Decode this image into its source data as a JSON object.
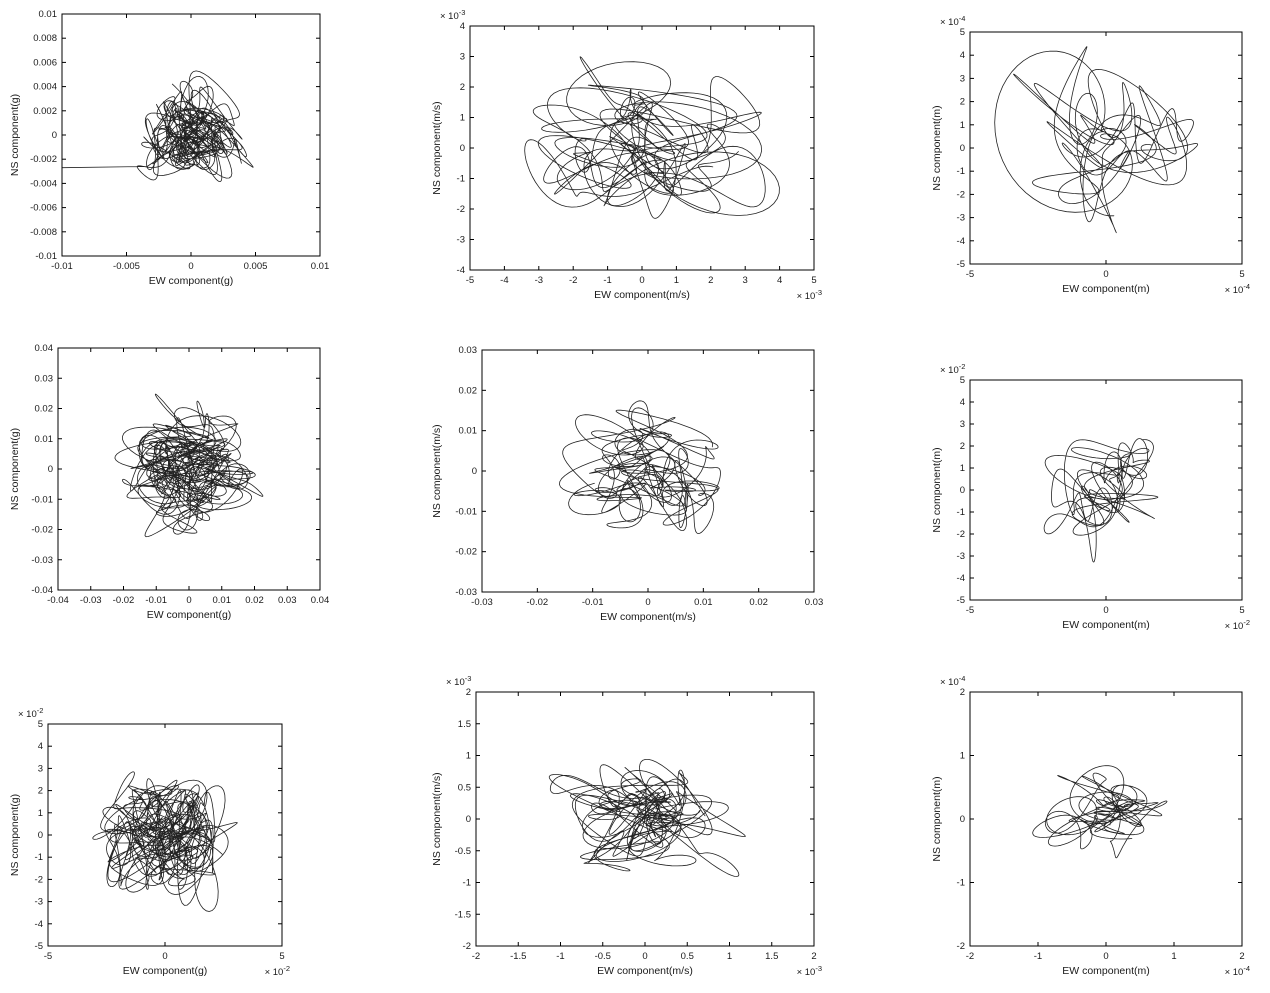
{
  "figure": {
    "background": "#ffffff",
    "axis_color": "#000000",
    "text_color": "#1a1a1a",
    "trace_color": "#222222",
    "description": "3x3 grid of seismic particle-motion hodograms (NS vs EW component) for acceleration (g), velocity (m/s) and displacement (m)"
  },
  "chart_data": [
    {
      "id": "accel-record1",
      "type": "line",
      "title": "",
      "xlabel": "EW component(g)",
      "ylabel": "NS component(g)",
      "xlim": [
        -0.01,
        0.01
      ],
      "ylim": [
        -0.01,
        0.01
      ],
      "xticks": [
        -0.01,
        -0.005,
        0,
        0.005,
        0.01
      ],
      "xtick_labels": [
        "-0.01",
        "-0.005",
        "0",
        "0.005",
        "0.01"
      ],
      "yticks": [
        0.01,
        0.008,
        0.006,
        0.004,
        0.002,
        0,
        -0.002,
        -0.004,
        -0.006,
        -0.008,
        -0.01
      ],
      "ytick_labels": [
        "0.01",
        "0.008",
        "0.006",
        "0.004",
        "0.002",
        "0",
        "-0.002",
        "-0.004",
        "-0.006",
        "-0.008",
        "-0.01"
      ],
      "x_exponent": null,
      "y_exponent": null,
      "grid": false,
      "legend": null,
      "trace": {
        "seed": 11,
        "components": 16,
        "cycles": 9,
        "points": 2600,
        "sigma_frac": [
          0.17,
          0.16
        ],
        "center_frac": [
          0.01,
          0
        ],
        "line_width": 0.8,
        "leadin_frac": [
          [
            -1,
            -0.27
          ],
          [
            -0.34,
            -0.26
          ]
        ]
      }
    },
    {
      "id": "vel-record1",
      "type": "line",
      "title": "",
      "xlabel": "EW component(m/s)",
      "ylabel": "NS component(m/s)",
      "xlim": [
        -5,
        5
      ],
      "ylim": [
        -4,
        4
      ],
      "xticks": [
        -5,
        -4,
        -3,
        -2,
        -1,
        0,
        1,
        2,
        3,
        4,
        5
      ],
      "xtick_labels": [
        "-5",
        "-4",
        "-3",
        "-2",
        "-1",
        "0",
        "1",
        "2",
        "3",
        "4",
        "5"
      ],
      "yticks": [
        4,
        3,
        2,
        1,
        0,
        -1,
        -2,
        -3,
        -4
      ],
      "ytick_labels": [
        "4",
        "3",
        "2",
        "1",
        "0",
        "-1",
        "-2",
        "-3",
        "-4"
      ],
      "x_exponent": "-3",
      "y_exponent": "-3",
      "grid": false,
      "legend": null,
      "trace": {
        "seed": 22,
        "components": 12,
        "cycles": 6,
        "points": 1800,
        "sigma_frac": [
          0.3,
          0.27
        ],
        "center_frac": [
          0,
          0
        ],
        "line_width": 0.8,
        "leadin_frac": null
      }
    },
    {
      "id": "disp-record1",
      "type": "line",
      "title": "",
      "xlabel": "EW component(m)",
      "ylabel": "NS component(m)",
      "xlim": [
        -5,
        5
      ],
      "ylim": [
        -5,
        5
      ],
      "xticks": [
        -5,
        0,
        5
      ],
      "xtick_labels": [
        "-5",
        "0",
        "5"
      ],
      "yticks": [
        5,
        4,
        3,
        2,
        1,
        0,
        -1,
        -2,
        -3,
        -4,
        -5
      ],
      "ytick_labels": [
        "5",
        "4",
        "3",
        "2",
        "1",
        "0",
        "-1",
        "-2",
        "-3",
        "-4",
        "-5"
      ],
      "x_exponent": "-4",
      "y_exponent": "-4",
      "grid": false,
      "legend": null,
      "trace": {
        "seed": 33,
        "components": 9,
        "cycles": 4.5,
        "points": 1200,
        "sigma_frac": [
          0.3,
          0.3
        ],
        "center_frac": [
          0.04,
          0.06
        ],
        "line_width": 0.8,
        "leadin_frac": null
      }
    },
    {
      "id": "accel-record2",
      "type": "line",
      "title": "",
      "xlabel": "EW component(g)",
      "ylabel": "NS component(g)",
      "xlim": [
        -0.04,
        0.04
      ],
      "ylim": [
        -0.04,
        0.04
      ],
      "xticks": [
        -0.04,
        -0.03,
        -0.02,
        -0.01,
        0,
        0.01,
        0.02,
        0.03,
        0.04
      ],
      "xtick_labels": [
        "-0.04",
        "-0.03",
        "-0.02",
        "-0.01",
        "0",
        "0.01",
        "0.02",
        "0.03",
        "0.04"
      ],
      "yticks": [
        0.04,
        0.03,
        0.02,
        0.01,
        0,
        -0.01,
        -0.02,
        -0.03,
        -0.04
      ],
      "ytick_labels": [
        "0.04",
        "0.03",
        "0.02",
        "0.01",
        "0",
        "-0.01",
        "-0.02",
        "-0.03",
        "-0.04"
      ],
      "x_exponent": null,
      "y_exponent": null,
      "grid": false,
      "legend": null,
      "trace": {
        "seed": 44,
        "components": 16,
        "cycles": 9,
        "points": 2600,
        "sigma_frac": [
          0.21,
          0.21
        ],
        "center_frac": [
          0,
          0
        ],
        "line_width": 0.8,
        "leadin_frac": null
      }
    },
    {
      "id": "vel-record2",
      "type": "line",
      "title": "",
      "xlabel": "EW component(m/s)",
      "ylabel": "NS component(m/s)",
      "xlim": [
        -0.03,
        0.03
      ],
      "ylim": [
        -0.03,
        0.03
      ],
      "xticks": [
        -0.03,
        -0.02,
        -0.01,
        0,
        0.01,
        0.02,
        0.03
      ],
      "xtick_labels": [
        "-0.03",
        "-0.02",
        "-0.01",
        "0",
        "0.01",
        "0.02",
        "0.03"
      ],
      "yticks": [
        0.03,
        0.02,
        0.01,
        0,
        -0.01,
        -0.02,
        -0.03
      ],
      "ytick_labels": [
        "0.03",
        "0.02",
        "0.01",
        "0",
        "-0.01",
        "-0.02",
        "-0.03"
      ],
      "x_exponent": null,
      "y_exponent": null,
      "grid": false,
      "legend": null,
      "trace": {
        "seed": 55,
        "components": 12,
        "cycles": 6,
        "points": 1700,
        "sigma_frac": [
          0.21,
          0.23
        ],
        "center_frac": [
          0,
          -0.02
        ],
        "line_width": 0.8,
        "leadin_frac": null
      }
    },
    {
      "id": "disp-record2",
      "type": "line",
      "title": "",
      "xlabel": "EW component(m)",
      "ylabel": "NS component(m)",
      "xlim": [
        -5,
        5
      ],
      "ylim": [
        -5,
        5
      ],
      "xticks": [
        -5,
        0,
        5
      ],
      "xtick_labels": [
        "-5",
        "0",
        "5"
      ],
      "yticks": [
        5,
        4,
        3,
        2,
        1,
        0,
        -1,
        -2,
        -3,
        -4,
        -5
      ],
      "ytick_labels": [
        "5",
        "4",
        "3",
        "2",
        "1",
        "0",
        "-1",
        "-2",
        "-3",
        "-4",
        "-5"
      ],
      "x_exponent": "-2",
      "y_exponent": "-2",
      "grid": false,
      "legend": null,
      "trace": {
        "seed": 66,
        "components": 9,
        "cycles": 4.5,
        "points": 1200,
        "sigma_frac": [
          0.19,
          0.23
        ],
        "center_frac": [
          0,
          0.03
        ],
        "line_width": 0.8,
        "leadin_frac": null
      }
    },
    {
      "id": "accel-record3",
      "type": "line",
      "title": "",
      "xlabel": "EW component(g)",
      "ylabel": "NS component(g)",
      "xlim": [
        -5,
        5
      ],
      "ylim": [
        -5,
        5
      ],
      "xticks": [
        -5,
        0,
        5
      ],
      "xtick_labels": [
        "-5",
        "0",
        "5"
      ],
      "yticks": [
        5,
        4,
        3,
        2,
        1,
        0,
        -1,
        -2,
        -3,
        -4,
        -5
      ],
      "ytick_labels": [
        "5",
        "4",
        "3",
        "2",
        "1",
        "0",
        "-1",
        "-2",
        "-3",
        "-4",
        "-5"
      ],
      "x_exponent": "-2",
      "y_exponent": "-2",
      "grid": false,
      "legend": null,
      "trace": {
        "seed": 77,
        "components": 16,
        "cycles": 9,
        "points": 2600,
        "sigma_frac": [
          0.24,
          0.24
        ],
        "center_frac": [
          0,
          0
        ],
        "line_width": 0.8,
        "leadin_frac": null
      }
    },
    {
      "id": "vel-record3",
      "type": "line",
      "title": "",
      "xlabel": "EW component(m/s)",
      "ylabel": "NS component(m/s)",
      "xlim": [
        -2,
        2
      ],
      "ylim": [
        -2,
        2
      ],
      "xticks": [
        -2,
        -1.5,
        -1,
        -0.5,
        0,
        0.5,
        1,
        1.5,
        2
      ],
      "xtick_labels": [
        "-2",
        "-1.5",
        "-1",
        "-0.5",
        "0",
        "0.5",
        "1",
        "1.5",
        "2"
      ],
      "yticks": [
        2,
        1.5,
        1,
        0.5,
        0,
        -0.5,
        -1,
        -1.5,
        -2
      ],
      "ytick_labels": [
        "2",
        "1.5",
        "1",
        "0.5",
        "0",
        "-0.5",
        "-1",
        "-1.5",
        "-2"
      ],
      "x_exponent": "-3",
      "y_exponent": "-3",
      "grid": false,
      "legend": null,
      "trace": {
        "seed": 88,
        "components": 12,
        "cycles": 6.5,
        "points": 1800,
        "sigma_frac": [
          0.21,
          0.19
        ],
        "center_frac": [
          0,
          0.03
        ],
        "line_width": 0.8,
        "leadin_frac": null
      }
    },
    {
      "id": "disp-record3",
      "type": "line",
      "title": "",
      "xlabel": "EW component(m)",
      "ylabel": "NS component(m)",
      "xlim": [
        -2,
        2
      ],
      "ylim": [
        -2,
        2
      ],
      "xticks": [
        -2,
        -1,
        0,
        1,
        2
      ],
      "xtick_labels": [
        "-2",
        "-1",
        "0",
        "1",
        "2"
      ],
      "yticks": [
        2,
        1,
        0,
        -1,
        -2
      ],
      "ytick_labels": [
        "2",
        "1",
        "0",
        "-1",
        "-2"
      ],
      "x_exponent": "-4",
      "y_exponent": "-4",
      "grid": false,
      "legend": null,
      "trace": {
        "seed": 99,
        "components": 9,
        "cycles": 4.5,
        "points": 1300,
        "sigma_frac": [
          0.19,
          0.14
        ],
        "center_frac": [
          0,
          0.05
        ],
        "line_width": 0.8,
        "leadin_frac": null
      }
    }
  ]
}
